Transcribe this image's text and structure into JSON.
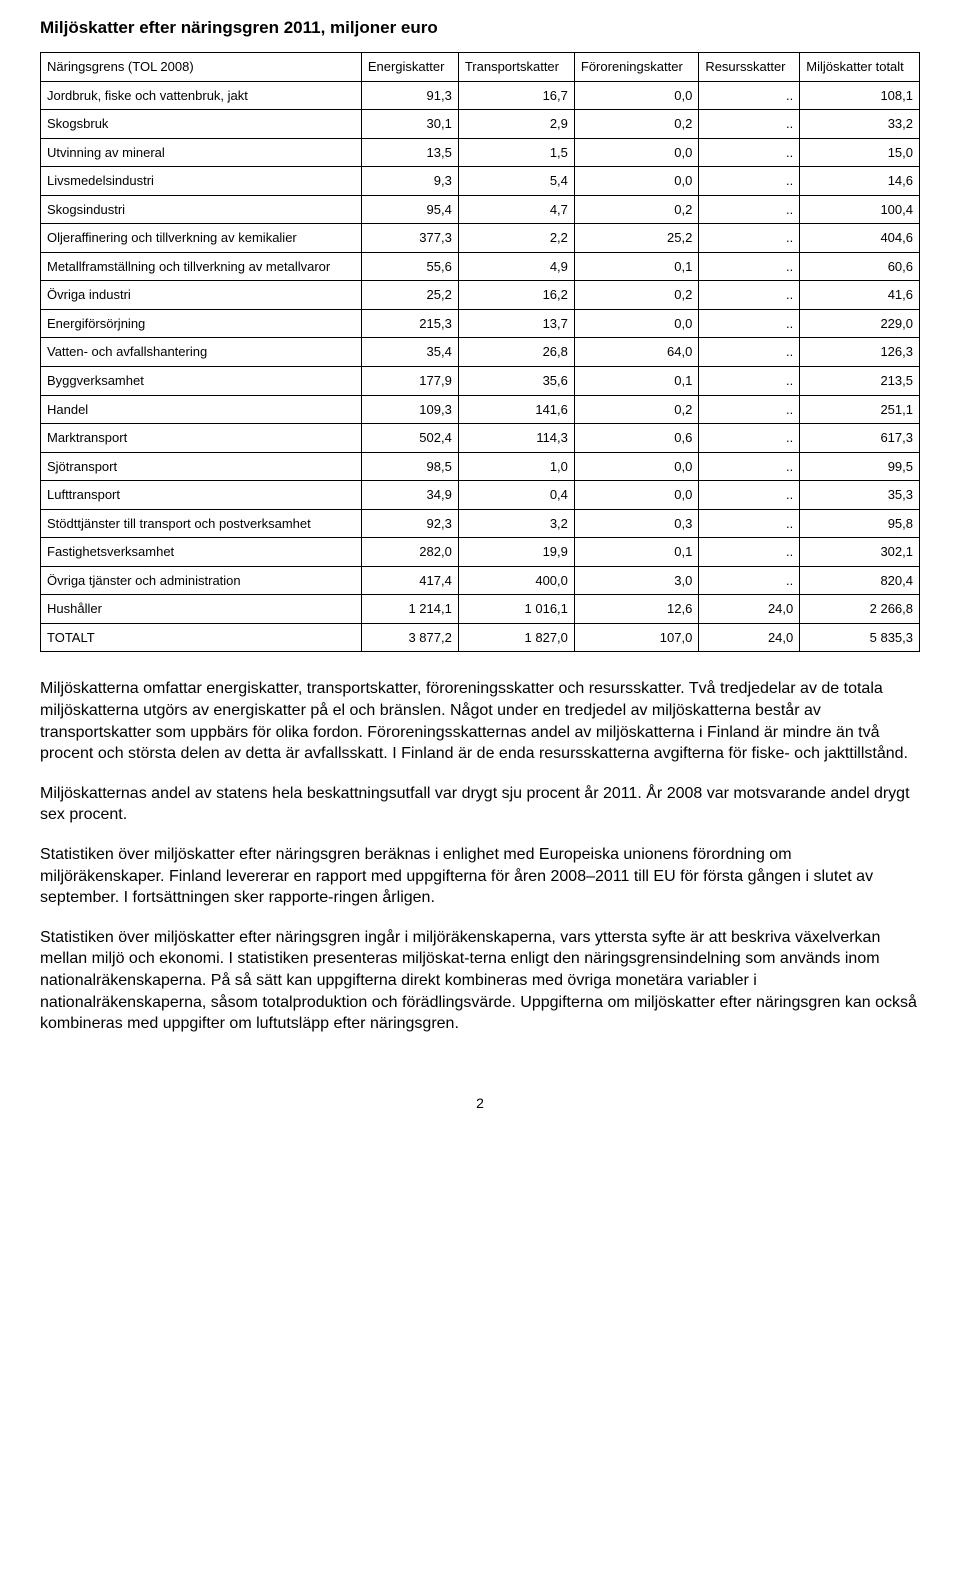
{
  "title": "Miljöskatter efter näringsgren 2011, miljoner euro",
  "table": {
    "type": "table",
    "background_color": "#ffffff",
    "border_color": "#000000",
    "font_size_pt": 10,
    "columns": [
      "Näringsgrens (TOL 2008)",
      "Energiskatter",
      "Transportskatter",
      "Föroreningskatter",
      "Resursskatter",
      "Miljöskatter totalt"
    ],
    "rows": [
      {
        "label": "Jordbruk, fiske och vattenbruk, jakt",
        "c": [
          "91,3",
          "16,7",
          "0,0",
          "..",
          "108,1"
        ]
      },
      {
        "label": "Skogsbruk",
        "c": [
          "30,1",
          "2,9",
          "0,2",
          "..",
          "33,2"
        ]
      },
      {
        "label": "Utvinning av mineral",
        "c": [
          "13,5",
          "1,5",
          "0,0",
          "..",
          "15,0"
        ]
      },
      {
        "label": "Livsmedelsindustri",
        "c": [
          "9,3",
          "5,4",
          "0,0",
          "..",
          "14,6"
        ]
      },
      {
        "label": "Skogsindustri",
        "c": [
          "95,4",
          "4,7",
          "0,2",
          "..",
          "100,4"
        ]
      },
      {
        "label": "Oljeraffinering och tillverkning av kemikalier",
        "c": [
          "377,3",
          "2,2",
          "25,2",
          "..",
          "404,6"
        ]
      },
      {
        "label": "Metallframställning och tillverkning av metallvaror",
        "c": [
          "55,6",
          "4,9",
          "0,1",
          "..",
          "60,6"
        ]
      },
      {
        "label": "Övriga industri",
        "c": [
          "25,2",
          "16,2",
          "0,2",
          "..",
          "41,6"
        ]
      },
      {
        "label": "Energiförsörjning",
        "c": [
          "215,3",
          "13,7",
          "0,0",
          "..",
          "229,0"
        ]
      },
      {
        "label": "Vatten- och avfallshantering",
        "c": [
          "35,4",
          "26,8",
          "64,0",
          "..",
          "126,3"
        ]
      },
      {
        "label": "Byggverksamhet",
        "c": [
          "177,9",
          "35,6",
          "0,1",
          "..",
          "213,5"
        ]
      },
      {
        "label": "Handel",
        "c": [
          "109,3",
          "141,6",
          "0,2",
          "..",
          "251,1"
        ]
      },
      {
        "label": "Marktransport",
        "c": [
          "502,4",
          "114,3",
          "0,6",
          "..",
          "617,3"
        ]
      },
      {
        "label": "Sjötransport",
        "c": [
          "98,5",
          "1,0",
          "0,0",
          "..",
          "99,5"
        ]
      },
      {
        "label": "Lufttransport",
        "c": [
          "34,9",
          "0,4",
          "0,0",
          "..",
          "35,3"
        ]
      },
      {
        "label": "Stödttjänster till transport och postverksamhet",
        "c": [
          "92,3",
          "3,2",
          "0,3",
          "..",
          "95,8"
        ]
      },
      {
        "label": "Fastighetsverksamhet",
        "c": [
          "282,0",
          "19,9",
          "0,1",
          "..",
          "302,1"
        ]
      },
      {
        "label": "Övriga tjänster och administration",
        "c": [
          "417,4",
          "400,0",
          "3,0",
          "..",
          "820,4"
        ]
      },
      {
        "label": "Hushåller",
        "c": [
          "1 214,1",
          "1 016,1",
          "12,6",
          "24,0",
          "2 266,8"
        ]
      },
      {
        "label": "TOTALT",
        "c": [
          "3 877,2",
          "1 827,0",
          "107,0",
          "24,0",
          "5 835,3"
        ]
      }
    ]
  },
  "paragraphs": [
    "Miljöskatterna omfattar energiskatter, transportskatter, föroreningsskatter och resursskatter. Två tredjedelar av de totala miljöskatterna utgörs av energiskatter på el och bränslen. Något under en tredjedel av miljöskatterna består av transportskatter som uppbärs för olika fordon. Föroreningsskatternas andel av miljöskatterna i Finland är mindre än två procent och största delen av detta är avfallsskatt. I Finland är de enda resursskatterna avgifterna för fiske- och jakttillstånd.",
    "Miljöskatternas andel av statens hela beskattningsutfall var drygt sju procent år 2011. År 2008 var motsvarande andel drygt sex procent.",
    "Statistiken över miljöskatter efter näringsgren beräknas i enlighet med Europeiska unionens förordning om miljöräkenskaper. Finland levererar en rapport med uppgifterna för åren 2008–2011 till EU för första gången i slutet av september. I fortsättningen sker rapporte-ringen årligen.",
    "Statistiken över miljöskatter efter näringsgren ingår i miljöräkenskaperna, vars yttersta syfte är att beskriva växelverkan mellan miljö och ekonomi. I statistiken presenteras miljöskat-terna enligt den näringsgrensindelning som används inom nationalräkenskaperna. På så sätt kan uppgifterna direkt kombineras med övriga monetära variabler i nationalräkenskaperna, såsom totalproduktion och förädlingsvärde. Uppgifterna om miljöskatter efter näringsgren kan också kombineras med uppgifter om luftutsläpp efter näringsgren."
  ],
  "page_number": "2",
  "body_font_size_pt": 12,
  "body_color": "#000000"
}
